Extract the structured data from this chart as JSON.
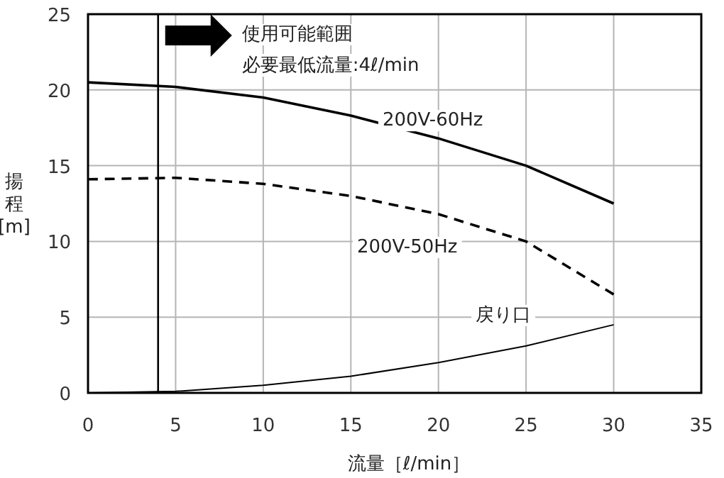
{
  "chart_data": {
    "type": "line",
    "xlabel": "流量［ℓ/min］",
    "ylabel": "揚程[m]",
    "x": [
      0,
      5,
      10,
      15,
      20,
      25,
      30
    ],
    "series": [
      {
        "name": "200V-60Hz",
        "color": "#000000",
        "line_style": "solid",
        "values": [
          20.5,
          20.2,
          19.5,
          18.3,
          16.8,
          15.0,
          12.5
        ]
      },
      {
        "name": "200V-50Hz",
        "color": "#000000",
        "line_style": "dashed",
        "values": [
          14.1,
          14.2,
          13.8,
          13.0,
          11.8,
          10.0,
          6.5
        ]
      },
      {
        "name": "戻り口",
        "color": "#000000",
        "line_style": "solid",
        "values": [
          0,
          0.1,
          0.5,
          1.1,
          2.0,
          3.1,
          4.5
        ]
      }
    ],
    "xlim": [
      0,
      35
    ],
    "xticks": [
      0,
      5,
      10,
      15,
      20,
      25,
      30,
      35
    ],
    "ylim": [
      0,
      25
    ],
    "yticks": [
      0,
      5,
      10,
      15,
      20,
      25
    ],
    "grid": true,
    "marker": "none",
    "ref_lines": [
      {
        "axis": "x",
        "value": 4,
        "color": "#000000"
      }
    ],
    "annotations": [
      "使用可能範囲",
      "必要最低流量:4ℓ/min"
    ]
  }
}
